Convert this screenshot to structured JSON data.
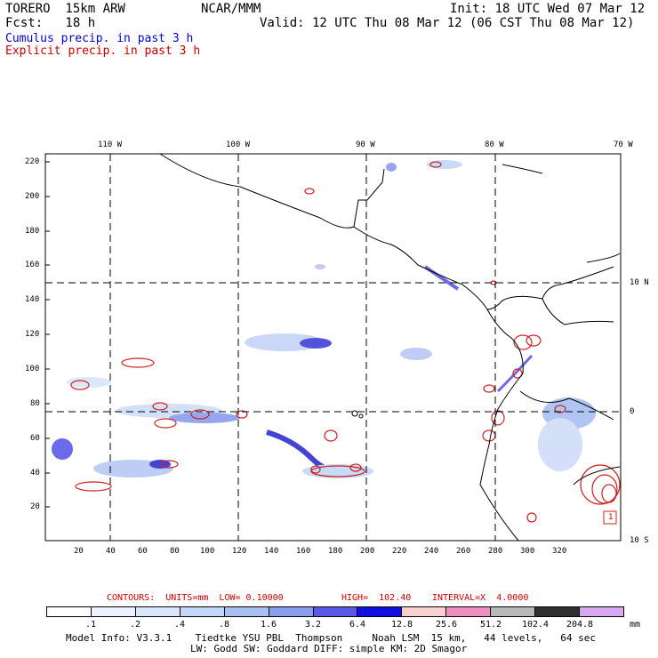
{
  "header": {
    "model": "TORERO  15km ARW",
    "org": "NCAR/MMM",
    "init": "Init: 18 UTC Wed 07 Mar 12",
    "fcst": "Fcst:   18 h",
    "valid": "Valid: 12 UTC Thu 08 Mar 12 (06 CST Thu 08 Mar 12)",
    "field1": "Cumulus precip. in past 3 h",
    "field2": "Explicit precip. in past 3 h"
  },
  "axes": {
    "lon_labels": [
      "110 W",
      "100 W",
      "90 W",
      "80 W",
      "70 W"
    ],
    "lat_labels": [
      "10 N",
      "0",
      "10 S"
    ],
    "y_ticks": [
      "220",
      "200",
      "180",
      "160",
      "140",
      "120",
      "100",
      "80",
      "60",
      "40",
      "20"
    ],
    "x_ticks": [
      "20",
      "40",
      "60",
      "80",
      "100",
      "120",
      "140",
      "160",
      "180",
      "200",
      "220",
      "240",
      "260",
      "280",
      "300",
      "320"
    ]
  },
  "contours": {
    "label": "CONTOURS:  UNITS=mm  LOW= 0.10000",
    "high": "HIGH=  102.40",
    "interval": "INTERVAL=X  4.0000"
  },
  "colorbar": {
    "labels": [
      ".1",
      ".2",
      ".4",
      ".8",
      "1.6",
      "3.2",
      "6.4",
      "12.8",
      "25.6",
      "51.2",
      "102.4",
      "204.8"
    ],
    "unit": "mm",
    "colors": [
      "#ffffff",
      "#ecf2fc",
      "#d8e6fa",
      "#c2d6f6",
      "#a8bff2",
      "#8a9cee",
      "#5a5ae8",
      "#1010e0",
      "#f8d0d0",
      "#f090c0",
      "#b8b8b8",
      "#303030",
      "#d8a8f0"
    ]
  },
  "footer": {
    "line1": "Model Info: V3.3.1    Tiedtke YSU PBL  Thompson     Noah LSM  15 km,   44 levels,   64 sec",
    "line2": "LW: Godd SW: Goddard DIFF: simple KM: 2D Smagor"
  },
  "map_labels": {
    "box_marker": "1"
  }
}
